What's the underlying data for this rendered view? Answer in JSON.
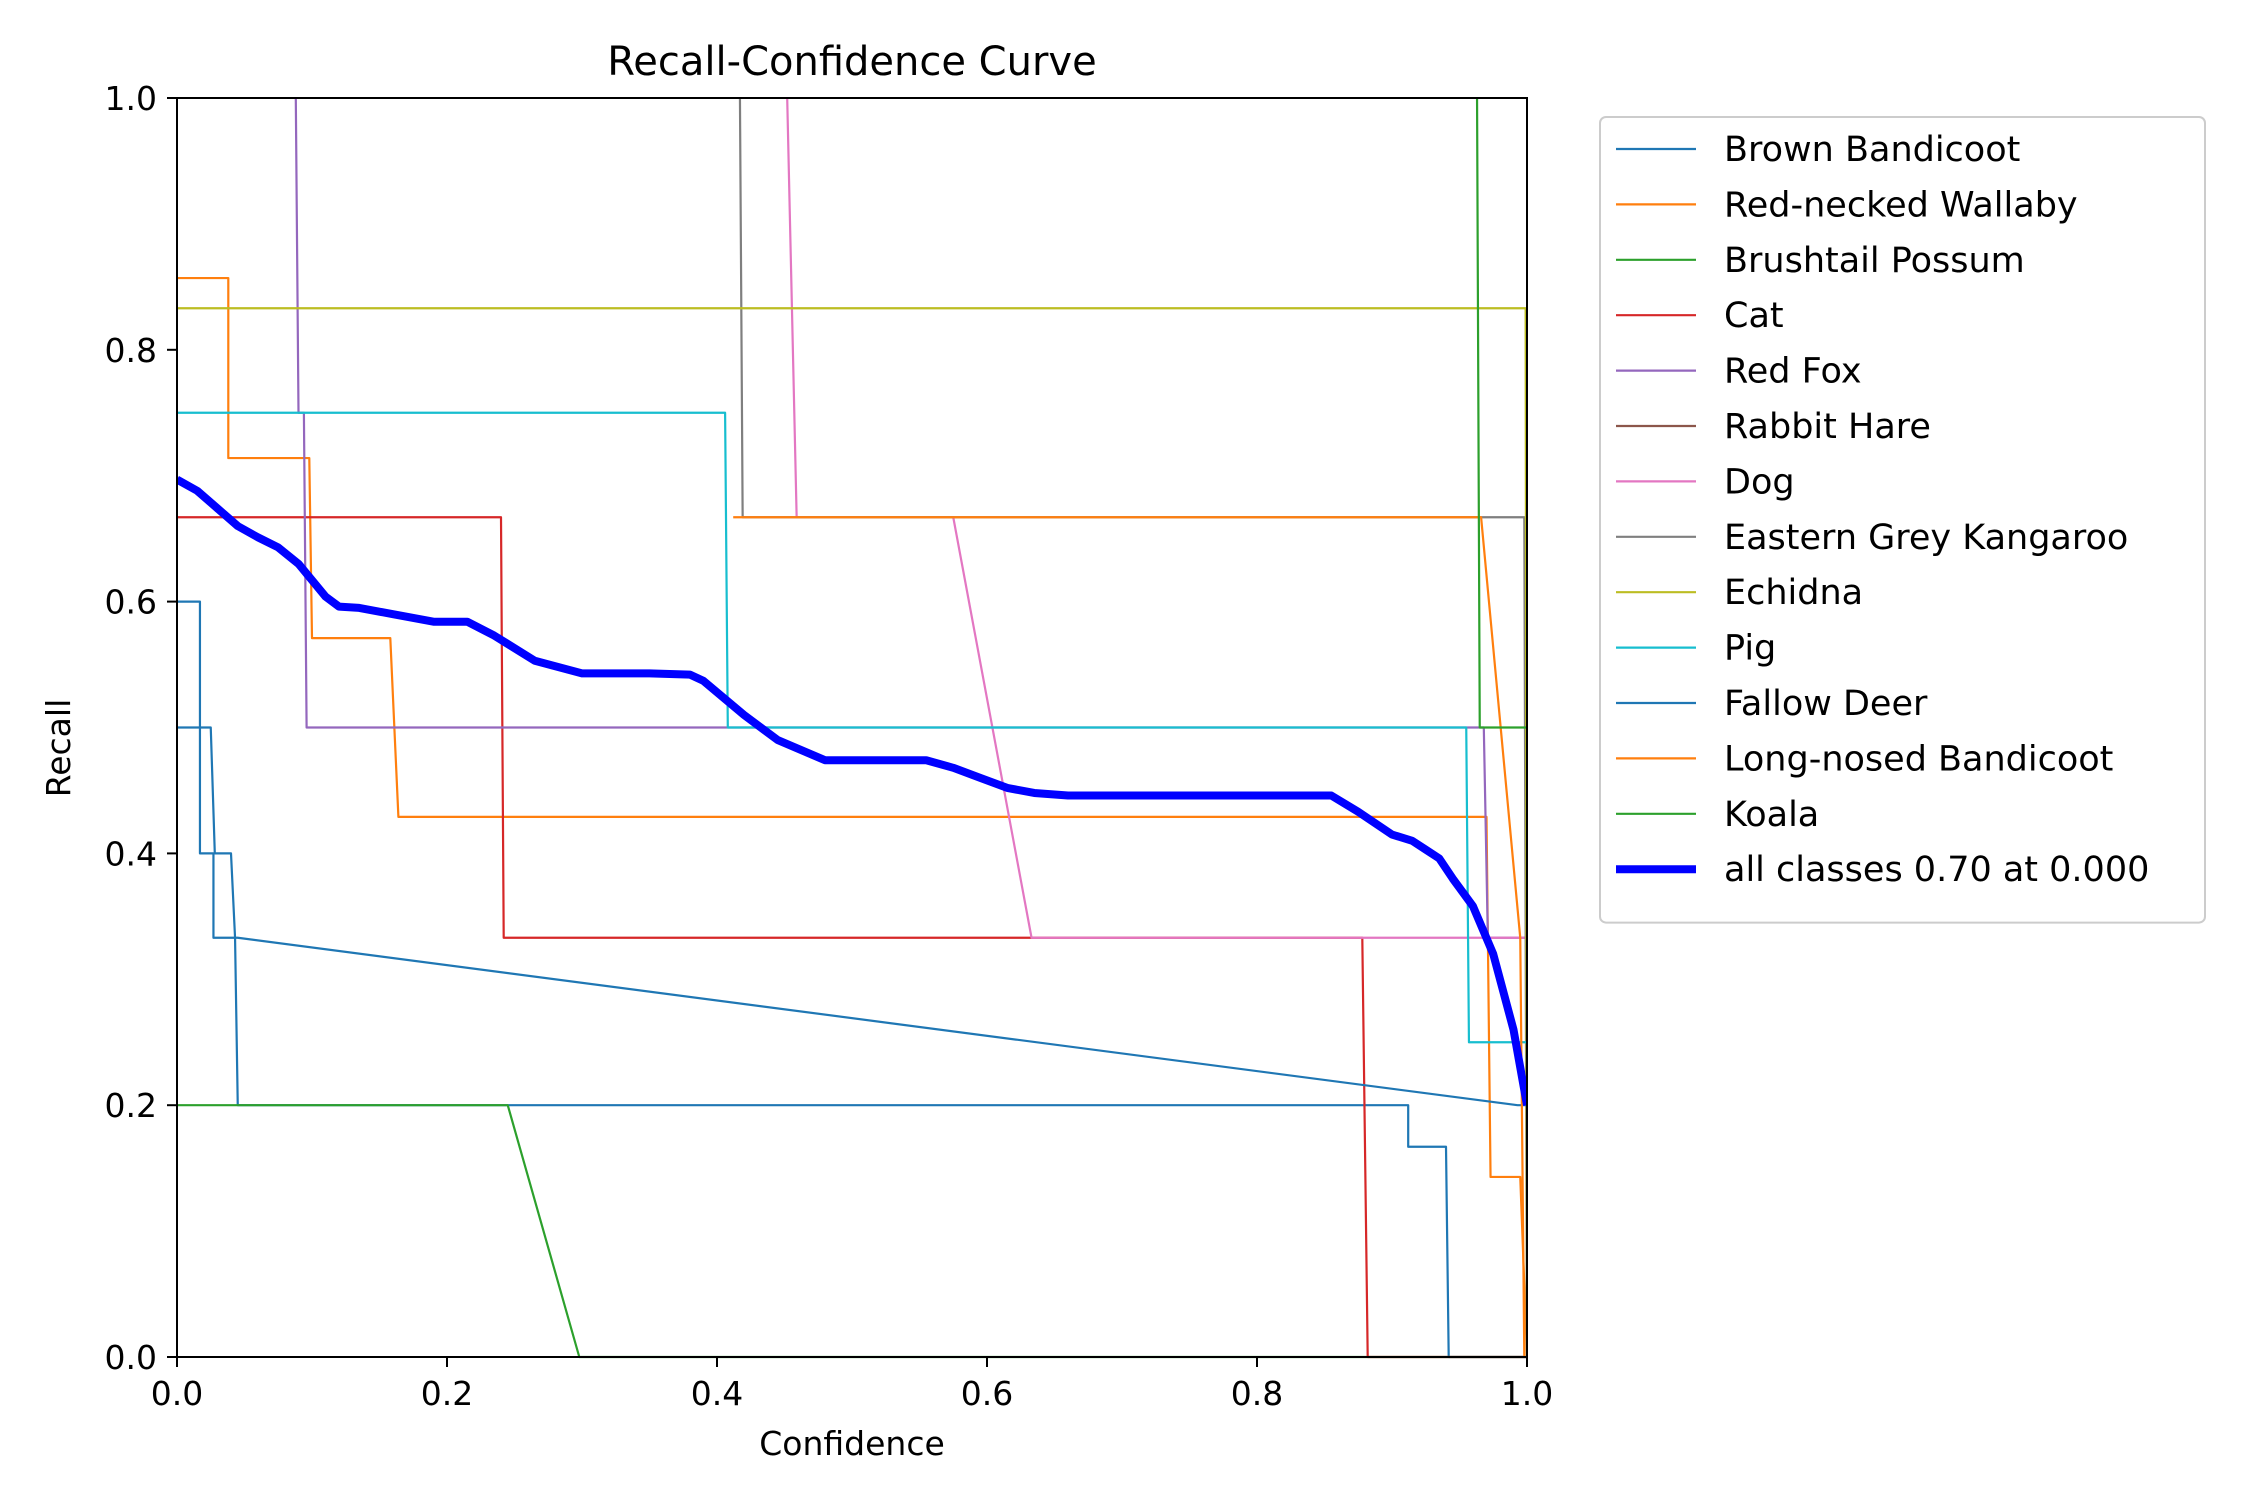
{
  "chart_data": {
    "type": "line",
    "title": "Recall-Confidence Curve",
    "xlabel": "Confidence",
    "ylabel": "Recall",
    "xlim": [
      0,
      1
    ],
    "ylim": [
      0,
      1
    ],
    "xticks": [
      "0.0",
      "0.2",
      "0.4",
      "0.6",
      "0.8",
      "1.0"
    ],
    "yticks": [
      "0.0",
      "0.2",
      "0.4",
      "0.6",
      "0.8",
      "1.0"
    ],
    "grid": false,
    "legend_position": "outside-right-top",
    "series": [
      {
        "name": "Brown Bandicoot",
        "color": "#1f77b4",
        "width": 1,
        "x": [
          0,
          0.017,
          0.017,
          0.027,
          0.027,
          0.043,
          0.045,
          0.045,
          0.9,
          0.912,
          0.912,
          0.94,
          0.942,
          1.0
        ],
        "y": [
          0.6,
          0.6,
          0.4,
          0.4,
          0.333,
          0.333,
          0.2,
          0.2,
          0.2,
          0.2,
          0.167,
          0.167,
          0,
          0
        ]
      },
      {
        "name": "Red-necked Wallaby",
        "color": "#ff7f0e",
        "width": 1,
        "x": [
          0,
          0.038,
          0.038,
          0.098,
          0.1,
          0.1,
          0.158,
          0.164,
          0.164,
          0.97,
          0.973,
          0.973,
          0.995,
          1.0
        ],
        "y": [
          0.857,
          0.857,
          0.714,
          0.714,
          0.571,
          0.571,
          0.571,
          0.429,
          0.429,
          0.429,
          0.143,
          0.143,
          0.143,
          0
        ]
      },
      {
        "name": "Brushtail Possum",
        "color": "#2ca02c",
        "width": 1,
        "x": [
          0,
          0.245,
          0.298,
          1.0
        ],
        "y": [
          0.2,
          0.2,
          0,
          0
        ]
      },
      {
        "name": "Cat",
        "color": "#d62728",
        "width": 1,
        "x": [
          0,
          0.24,
          0.242,
          0.878,
          0.882,
          1.0
        ],
        "y": [
          0.667,
          0.667,
          0.333,
          0.333,
          0,
          0
        ]
      },
      {
        "name": "Red Fox",
        "color": "#9467bd",
        "width": 1,
        "x": [
          0.088,
          0.09,
          0.094,
          0.096,
          0.968,
          0.971,
          1.0
        ],
        "y": [
          1.0,
          0.75,
          0.75,
          0.5,
          0.5,
          0.333,
          0.333
        ]
      },
      {
        "name": "Rabbit Hare",
        "color": "#8c564b",
        "width": 1,
        "x": [],
        "y": []
      },
      {
        "name": "Dog",
        "color": "#e377c2",
        "width": 1,
        "x": [
          0.452,
          0.459,
          0.575,
          0.633,
          1.0
        ],
        "y": [
          1.0,
          0.667,
          0.667,
          0.333,
          0.333
        ]
      },
      {
        "name": "Eastern Grey Kangaroo",
        "color": "#7f7f7f",
        "width": 1,
        "x": [
          0.417,
          0.419,
          0.998,
          1.0
        ],
        "y": [
          1.0,
          0.667,
          0.667,
          0
        ]
      },
      {
        "name": "Echidna",
        "color": "#bcbd22",
        "width": 1,
        "x": [
          0,
          0.999,
          1.0
        ],
        "y": [
          0.833,
          0.833,
          0
        ]
      },
      {
        "name": "Pig",
        "color": "#17becf",
        "width": 1,
        "x": [
          0,
          0.406,
          0.408,
          0.955,
          0.957,
          1.0
        ],
        "y": [
          0.75,
          0.75,
          0.5,
          0.5,
          0.25,
          0.25
        ]
      },
      {
        "name": "Fallow Deer",
        "color": "#1f77b4",
        "width": 1,
        "x": [
          0,
          0.025,
          0.028,
          0.04,
          0.043,
          0.045,
          0.993,
          1.0
        ],
        "y": [
          0.5,
          0.5,
          0.4,
          0.4,
          0.333,
          0.333,
          0.2,
          0.2
        ]
      },
      {
        "name": "Long-nosed Bandicoot",
        "color": "#ff7f0e",
        "width": 1,
        "x": [
          0.412,
          0.966,
          0.995,
          0.998
        ],
        "y": [
          0.667,
          0.667,
          0.333,
          0
        ]
      },
      {
        "name": "Koala",
        "color": "#2ca02c",
        "width": 1,
        "x": [
          0.963,
          0.965,
          0.966,
          1.0
        ],
        "y": [
          1.0,
          0.5,
          0.5,
          0.5
        ]
      },
      {
        "name": "all classes 0.70 at 0.000",
        "color": "#0000ff",
        "width": 4,
        "x": [
          0,
          0.015,
          0.03,
          0.045,
          0.06,
          0.075,
          0.09,
          0.11,
          0.12,
          0.135,
          0.16,
          0.19,
          0.215,
          0.235,
          0.265,
          0.3,
          0.35,
          0.38,
          0.39,
          0.42,
          0.445,
          0.48,
          0.555,
          0.575,
          0.595,
          0.615,
          0.635,
          0.66,
          0.855,
          0.875,
          0.9,
          0.915,
          0.925,
          0.935,
          0.945,
          0.96,
          0.975,
          0.99,
          1.0
        ],
        "y": [
          0.697,
          0.688,
          0.674,
          0.66,
          0.651,
          0.643,
          0.63,
          0.604,
          0.596,
          0.595,
          0.59,
          0.584,
          0.584,
          0.573,
          0.553,
          0.543,
          0.543,
          0.542,
          0.537,
          0.51,
          0.49,
          0.474,
          0.474,
          0.468,
          0.46,
          0.452,
          0.448,
          0.446,
          0.446,
          0.433,
          0.415,
          0.41,
          0.403,
          0.396,
          0.38,
          0.358,
          0.32,
          0.26,
          0.2
        ]
      }
    ]
  }
}
